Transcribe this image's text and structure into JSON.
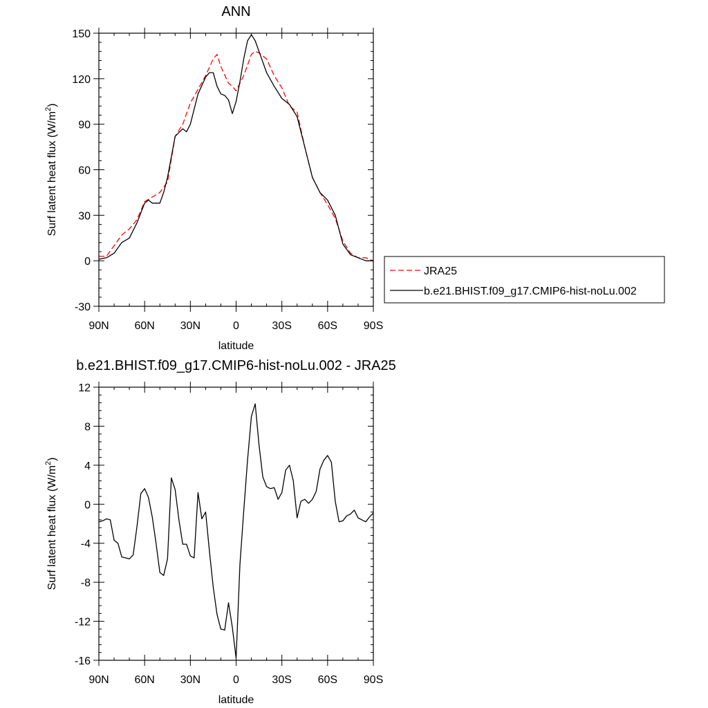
{
  "chart_data": [
    {
      "type": "line",
      "title": "ANN",
      "xlabel": "latitude",
      "ylabel": "Surf latent heat flux (W/m",
      "ylabel_sup": "2",
      "ylabel_close": ")",
      "xlim": [
        90,
        -90
      ],
      "ylim": [
        -30,
        150
      ],
      "x_ticks": [
        90,
        60,
        30,
        0,
        -30,
        -60,
        -90
      ],
      "x_tick_labels": [
        "90N",
        "60N",
        "30N",
        "0",
        "30S",
        "60S",
        "90S"
      ],
      "y_ticks": [
        -30,
        0,
        30,
        60,
        90,
        120,
        150
      ],
      "y_tick_labels": [
        "-30",
        "0",
        "30",
        "60",
        "90",
        "120",
        "150"
      ],
      "legend_position": "right",
      "series": [
        {
          "name": "JRA25",
          "color": "#ff0000",
          "style": "dashed",
          "x": [
            90,
            85,
            80,
            75,
            70,
            65,
            60,
            55,
            50,
            45,
            40,
            35,
            30,
            25,
            20,
            15,
            12.5,
            10,
            5,
            2.5,
            0,
            -5,
            -10,
            -12.5,
            -15,
            -20,
            -25,
            -30,
            -35,
            -40,
            -45,
            -50,
            -55,
            -60,
            -65,
            -70,
            -75,
            -80,
            -85,
            -90
          ],
          "y": [
            3,
            3,
            10,
            17,
            21,
            27,
            39,
            42,
            45,
            52,
            82,
            90,
            104,
            113,
            122,
            133,
            136,
            128,
            117,
            115,
            112,
            122,
            136,
            138,
            137,
            133,
            122,
            114,
            102,
            98,
            75,
            55,
            45,
            37,
            28,
            13,
            5,
            2,
            2,
            0
          ]
        },
        {
          "name": "b.e21.BHIST.f09_g17.CMIP6-hist-noLu.002",
          "color": "#000000",
          "style": "solid",
          "x": [
            90,
            85,
            80,
            75,
            70,
            65,
            60,
            57.5,
            55,
            50,
            47.5,
            45,
            40,
            35,
            32.5,
            30,
            25,
            20,
            17.5,
            15,
            12.5,
            10,
            7.5,
            5,
            2.5,
            0,
            -2.5,
            -5,
            -7.5,
            -10,
            -12.5,
            -15,
            -20,
            -25,
            -30,
            -35,
            -40,
            -45,
            -50,
            -55,
            -60,
            -65,
            -70,
            -75,
            -80,
            -85,
            -90
          ],
          "y": [
            1,
            2,
            5,
            12,
            15,
            25,
            38,
            40,
            38,
            38,
            45,
            55,
            82,
            87,
            85,
            90,
            110,
            121,
            124,
            124,
            115,
            110,
            109,
            106,
            97,
            105,
            118,
            133,
            145,
            149,
            145,
            138,
            124,
            115,
            107,
            103,
            95,
            75,
            55,
            45,
            40,
            30,
            11,
            4,
            2,
            0,
            0
          ]
        }
      ]
    },
    {
      "type": "line",
      "title": "b.e21.BHIST.f09_g17.CMIP6-hist-noLu.002 - JRA25",
      "xlabel": "latitude",
      "ylabel": "Surf latent heat flux (W/m",
      "ylabel_sup": "2",
      "ylabel_close": ")",
      "xlim": [
        90,
        -90
      ],
      "ylim": [
        -16,
        12
      ],
      "x_ticks": [
        90,
        60,
        30,
        0,
        -30,
        -60,
        -90
      ],
      "x_tick_labels": [
        "90N",
        "60N",
        "30N",
        "0",
        "30S",
        "60S",
        "90S"
      ],
      "y_ticks": [
        -16,
        -12,
        -8,
        -4,
        0,
        4,
        8,
        12
      ],
      "y_tick_labels": [
        "-16",
        "-12",
        "-8",
        "-4",
        "0",
        "4",
        "8",
        "12"
      ],
      "series": [
        {
          "color": "#000000",
          "style": "solid",
          "x": [
            90,
            87.5,
            85,
            82.5,
            80,
            77.5,
            75,
            72.5,
            70,
            67.5,
            65,
            62.5,
            60,
            57.5,
            55,
            52.5,
            50,
            47.5,
            45,
            42.5,
            40,
            37.5,
            35,
            32.5,
            30,
            27.5,
            25,
            22.5,
            20,
            17.5,
            15,
            12.5,
            10,
            7.5,
            5,
            2.5,
            0,
            -2.5,
            -5,
            -7.5,
            -10,
            -12.5,
            -15,
            -17.5,
            -20,
            -22.5,
            -25,
            -27.5,
            -30,
            -32.5,
            -35,
            -37.5,
            -40,
            -42.5,
            -45,
            -47.5,
            -50,
            -52.5,
            -55,
            -57.5,
            -60,
            -62.5,
            -65,
            -67.5,
            -70,
            -72.5,
            -75,
            -77.5,
            -80,
            -82.5,
            -85,
            -87.5,
            -90
          ],
          "y": [
            -1.8,
            -1.7,
            -1.5,
            -1.6,
            -3.7,
            -4.0,
            -5.4,
            -5.5,
            -5.6,
            -5.2,
            -2.3,
            1.1,
            1.6,
            0.7,
            -1.3,
            -4.0,
            -7.0,
            -7.3,
            -5.6,
            2.7,
            1.5,
            -1.6,
            -4.1,
            -4.1,
            -5.3,
            -5.5,
            1.2,
            -1.5,
            -0.8,
            -4.8,
            -8.5,
            -11.3,
            -12.8,
            -12.9,
            -10.1,
            -12.6,
            -15.8,
            -6.2,
            -0.7,
            4.5,
            9.0,
            10.3,
            6.1,
            2.8,
            1.8,
            1.6,
            1.7,
            0.5,
            1.2,
            3.5,
            4.0,
            2.4,
            -1.4,
            0.3,
            0.5,
            0.1,
            0.5,
            1.3,
            3.6,
            4.5,
            5.0,
            4.3,
            0.3,
            -1.8,
            -1.7,
            -1.2,
            -1.0,
            -0.6,
            -1.4,
            -1.6,
            -1.8,
            -1.3,
            -0.9
          ]
        }
      ]
    }
  ]
}
